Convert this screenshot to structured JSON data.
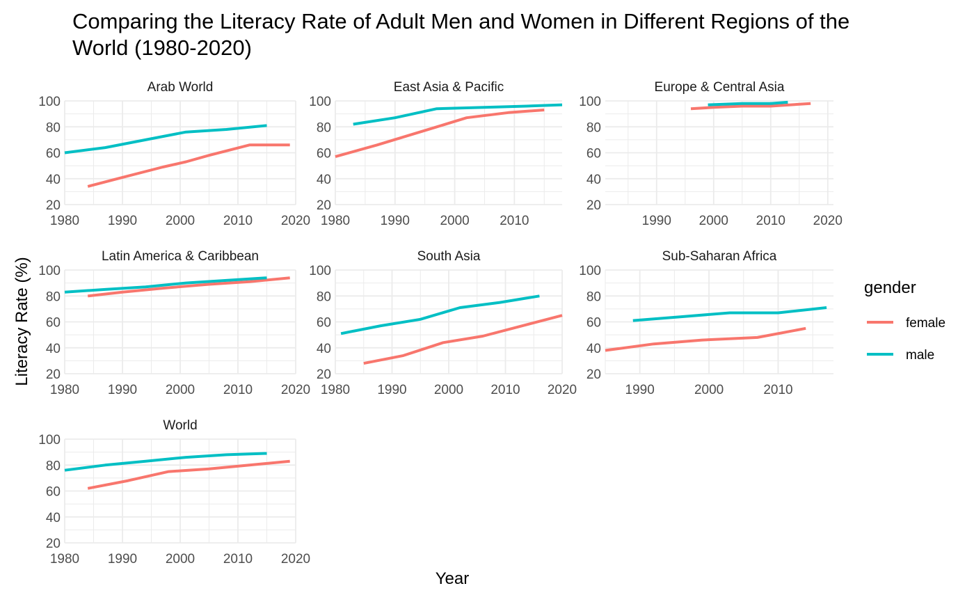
{
  "title": "Comparing the Literacy Rate of Adult Men and Women in Different Regions of the World (1980-2020)",
  "colors": {
    "female": "#F8766D",
    "male": "#00BFC4",
    "grid": "#EBEBEB",
    "tick_text": "#4D4D4D"
  },
  "chart_data": {
    "type": "line",
    "title": "Comparing the Literacy Rate of Adult Men and Women in Different Regions of the World (1980-2020)",
    "xlabel": "Year",
    "ylabel": "Literacy Rate (%)",
    "ylim": [
      20,
      100
    ],
    "yticks": [
      20,
      40,
      60,
      80,
      100
    ],
    "grid": true,
    "legend": {
      "title": "gender",
      "position": "right",
      "entries": [
        "female",
        "male"
      ]
    },
    "facets": [
      {
        "name": "Arab World",
        "xlim": [
          1980,
          2020
        ],
        "xticks": [
          1980,
          1990,
          2000,
          2010,
          2020
        ],
        "series": [
          {
            "name": "female",
            "x": [
              1984,
              1990,
              1997,
              2001,
              2005,
              2012,
              2019
            ],
            "values": [
              34,
              41,
              49,
              53,
              58,
              66,
              66
            ]
          },
          {
            "name": "male",
            "x": [
              1980,
              1987,
              1994,
              2001,
              2008,
              2015
            ],
            "values": [
              60,
              64,
              70,
              76,
              78,
              81
            ]
          }
        ]
      },
      {
        "name": "East Asia & Pacific",
        "xlim": [
          1980,
          2018
        ],
        "xticks": [
          1980,
          1990,
          2000,
          2010
        ],
        "series": [
          {
            "name": "female",
            "x": [
              1980,
              1987,
              1992,
              1997,
              2002,
              2009,
              2015
            ],
            "values": [
              57,
              66,
              73,
              80,
              87,
              91,
              93
            ]
          },
          {
            "name": "male",
            "x": [
              1983,
              1990,
              1997,
              2005,
              2012,
              2018
            ],
            "values": [
              82,
              87,
              94,
              95,
              96,
              97
            ]
          }
        ]
      },
      {
        "name": "Europe & Central Asia",
        "xlim": [
          1981,
          2021
        ],
        "xticks": [
          1990,
          2000,
          2010,
          2020
        ],
        "series": [
          {
            "name": "female",
            "x": [
              1996,
              2000,
              2005,
              2010,
              2017
            ],
            "values": [
              94,
              95,
              96,
              96,
              98
            ]
          },
          {
            "name": "male",
            "x": [
              1999,
              2005,
              2010,
              2013
            ],
            "values": [
              97,
              98,
              98,
              99
            ]
          }
        ]
      },
      {
        "name": "Latin America & Caribbean",
        "xlim": [
          1980,
          2020
        ],
        "xticks": [
          1980,
          1990,
          2000,
          2010,
          2020
        ],
        "series": [
          {
            "name": "female",
            "x": [
              1984,
              1990,
              1997,
              2005,
              2012,
              2019
            ],
            "values": [
              80,
              83,
              86,
              89,
              91,
              94
            ]
          },
          {
            "name": "male",
            "x": [
              1980,
              1987,
              1994,
              2001,
              2008,
              2015
            ],
            "values": [
              83,
              85,
              87,
              90,
              92,
              94
            ]
          }
        ]
      },
      {
        "name": "South Asia",
        "xlim": [
          1980,
          2020
        ],
        "xticks": [
          1980,
          1990,
          2000,
          2010,
          2020
        ],
        "series": [
          {
            "name": "female",
            "x": [
              1985,
              1992,
              1999,
              2006,
              2013,
              2020
            ],
            "values": [
              28,
              34,
              44,
              49,
              57,
              65
            ]
          },
          {
            "name": "male",
            "x": [
              1981,
              1988,
              1995,
              2002,
              2009,
              2016
            ],
            "values": [
              51,
              57,
              62,
              71,
              75,
              80
            ]
          }
        ]
      },
      {
        "name": "Sub-Saharan Africa",
        "xlim": [
          1985,
          2018
        ],
        "xticks": [
          1990,
          2000,
          2010
        ],
        "series": [
          {
            "name": "female",
            "x": [
              1985,
              1992,
              1999,
              2007,
              2014
            ],
            "values": [
              38,
              43,
              46,
              48,
              55
            ]
          },
          {
            "name": "male",
            "x": [
              1989,
              1996,
              2003,
              2010,
              2017
            ],
            "values": [
              61,
              64,
              67,
              67,
              71
            ]
          }
        ]
      },
      {
        "name": "World",
        "xlim": [
          1980,
          2020
        ],
        "xticks": [
          1980,
          1990,
          2000,
          2010,
          2020
        ],
        "series": [
          {
            "name": "female",
            "x": [
              1984,
              1991,
              1998,
              2005,
              2012,
              2019
            ],
            "values": [
              62,
              68,
              75,
              77,
              80,
              83
            ]
          },
          {
            "name": "male",
            "x": [
              1980,
              1987,
              1994,
              2001,
              2008,
              2015
            ],
            "values": [
              76,
              80,
              83,
              86,
              88,
              89
            ]
          }
        ]
      }
    ]
  }
}
